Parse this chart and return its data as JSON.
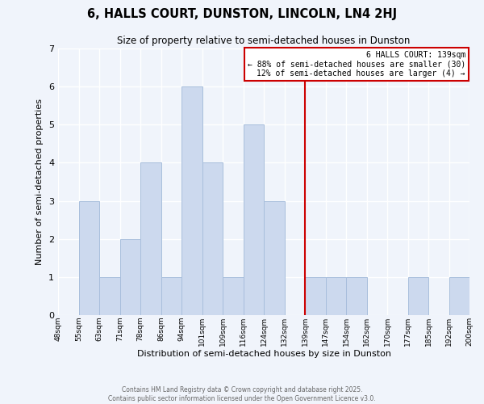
{
  "title": "6, HALLS COURT, DUNSTON, LINCOLN, LN4 2HJ",
  "subtitle": "Size of property relative to semi-detached houses in Dunston",
  "xlabel": "Distribution of semi-detached houses by size in Dunston",
  "ylabel": "Number of semi-detached properties",
  "bin_edges": [
    "48sqm",
    "55sqm",
    "63sqm",
    "71sqm",
    "78sqm",
    "86sqm",
    "94sqm",
    "101sqm",
    "109sqm",
    "116sqm",
    "124sqm",
    "132sqm",
    "139sqm",
    "147sqm",
    "154sqm",
    "162sqm",
    "170sqm",
    "177sqm",
    "185sqm",
    "192sqm",
    "200sqm"
  ],
  "bar_values": [
    0,
    3,
    1,
    2,
    4,
    1,
    6,
    4,
    1,
    5,
    3,
    0,
    1,
    1,
    1,
    0,
    0,
    1,
    0,
    1
  ],
  "bar_color": "#ccd9ee",
  "bar_edge_color": "#a8bedc",
  "ylim": [
    0,
    7
  ],
  "yticks": [
    0,
    1,
    2,
    3,
    4,
    5,
    6,
    7
  ],
  "vline_index": 12,
  "vline_color": "#cc0000",
  "annotation_title": "6 HALLS COURT: 139sqm",
  "annotation_line1": "← 88% of semi-detached houses are smaller (30)",
  "annotation_line2": "12% of semi-detached houses are larger (4) →",
  "annotation_box_color": "#cc0000",
  "footer_line1": "Contains HM Land Registry data © Crown copyright and database right 2025.",
  "footer_line2": "Contains public sector information licensed under the Open Government Licence v3.0.",
  "bg_color": "#f0f4fb",
  "grid_color": "#ffffff"
}
